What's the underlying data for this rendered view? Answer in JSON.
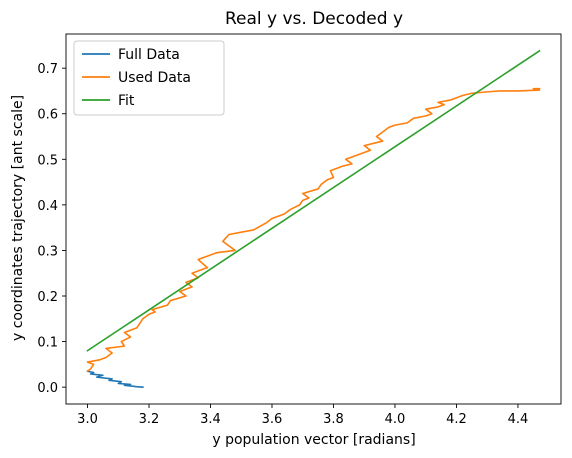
{
  "chart_data": {
    "type": "line",
    "title": "Real y vs. Decoded y",
    "xlabel": "y population vector [radians]",
    "ylabel": "y coordinates trajectory [ant scale]",
    "xlim": [
      2.93,
      4.54
    ],
    "ylim": [
      -0.037,
      0.775
    ],
    "xticks": [
      3.0,
      3.2,
      3.4,
      3.6,
      3.8,
      4.0,
      4.2,
      4.4
    ],
    "xtick_labels": [
      "3.0",
      "3.2",
      "3.4",
      "3.6",
      "3.8",
      "4.0",
      "4.2",
      "4.4"
    ],
    "yticks": [
      0.0,
      0.1,
      0.2,
      0.3,
      0.4,
      0.5,
      0.6,
      0.7
    ],
    "ytick_labels": [
      "0.0",
      "0.1",
      "0.2",
      "0.3",
      "0.4",
      "0.5",
      "0.6",
      "0.7"
    ],
    "grid": false,
    "legend_position": "top-left",
    "series": [
      {
        "name": "Full Data",
        "color": "#1f77b4",
        "x": [
          3.18,
          3.16,
          3.12,
          3.14,
          3.1,
          3.11,
          3.07,
          3.08,
          3.03,
          3.05,
          3.01,
          3.02,
          3.0
        ],
        "y": [
          0.0,
          0.001,
          0.004,
          0.006,
          0.008,
          0.012,
          0.015,
          0.018,
          0.022,
          0.026,
          0.029,
          0.032,
          0.035
        ]
      },
      {
        "name": "Used Data",
        "color": "#ff7f0e",
        "x": [
          3.0,
          3.01,
          3.02,
          3.0,
          3.04,
          3.06,
          3.08,
          3.06,
          3.12,
          3.11,
          3.14,
          3.12,
          3.16,
          3.18,
          3.2,
          3.22,
          3.21,
          3.26,
          3.27,
          3.32,
          3.3,
          3.34,
          3.32,
          3.36,
          3.34,
          3.38,
          3.39,
          3.36,
          3.42,
          3.48,
          3.46,
          3.44,
          3.46,
          3.5,
          3.54,
          3.58,
          3.6,
          3.64,
          3.66,
          3.69,
          3.7,
          3.72,
          3.7,
          3.75,
          3.76,
          3.78,
          3.8,
          3.79,
          3.83,
          3.86,
          3.84,
          3.88,
          3.92,
          3.9,
          3.96,
          3.94,
          3.98,
          4.0,
          4.04,
          4.06,
          4.1,
          4.12,
          4.1,
          4.14,
          4.16,
          4.14,
          4.18,
          4.22,
          4.25,
          4.3,
          4.34,
          4.4,
          4.47,
          4.45,
          4.47
        ],
        "y": [
          0.035,
          0.04,
          0.05,
          0.055,
          0.06,
          0.065,
          0.075,
          0.085,
          0.09,
          0.1,
          0.11,
          0.12,
          0.13,
          0.15,
          0.16,
          0.165,
          0.17,
          0.18,
          0.19,
          0.2,
          0.21,
          0.22,
          0.23,
          0.24,
          0.25,
          0.26,
          0.262,
          0.28,
          0.295,
          0.3,
          0.31,
          0.32,
          0.335,
          0.34,
          0.345,
          0.36,
          0.37,
          0.38,
          0.39,
          0.4,
          0.41,
          0.415,
          0.425,
          0.435,
          0.445,
          0.455,
          0.46,
          0.475,
          0.485,
          0.49,
          0.5,
          0.51,
          0.52,
          0.53,
          0.54,
          0.55,
          0.57,
          0.575,
          0.58,
          0.59,
          0.595,
          0.6,
          0.61,
          0.615,
          0.62,
          0.625,
          0.63,
          0.64,
          0.645,
          0.648,
          0.65,
          0.65,
          0.652,
          0.655,
          0.655
        ]
      },
      {
        "name": "Fit",
        "color": "#2ca02c",
        "x": [
          3.0,
          4.47
        ],
        "y": [
          0.08,
          0.738
        ]
      }
    ]
  }
}
